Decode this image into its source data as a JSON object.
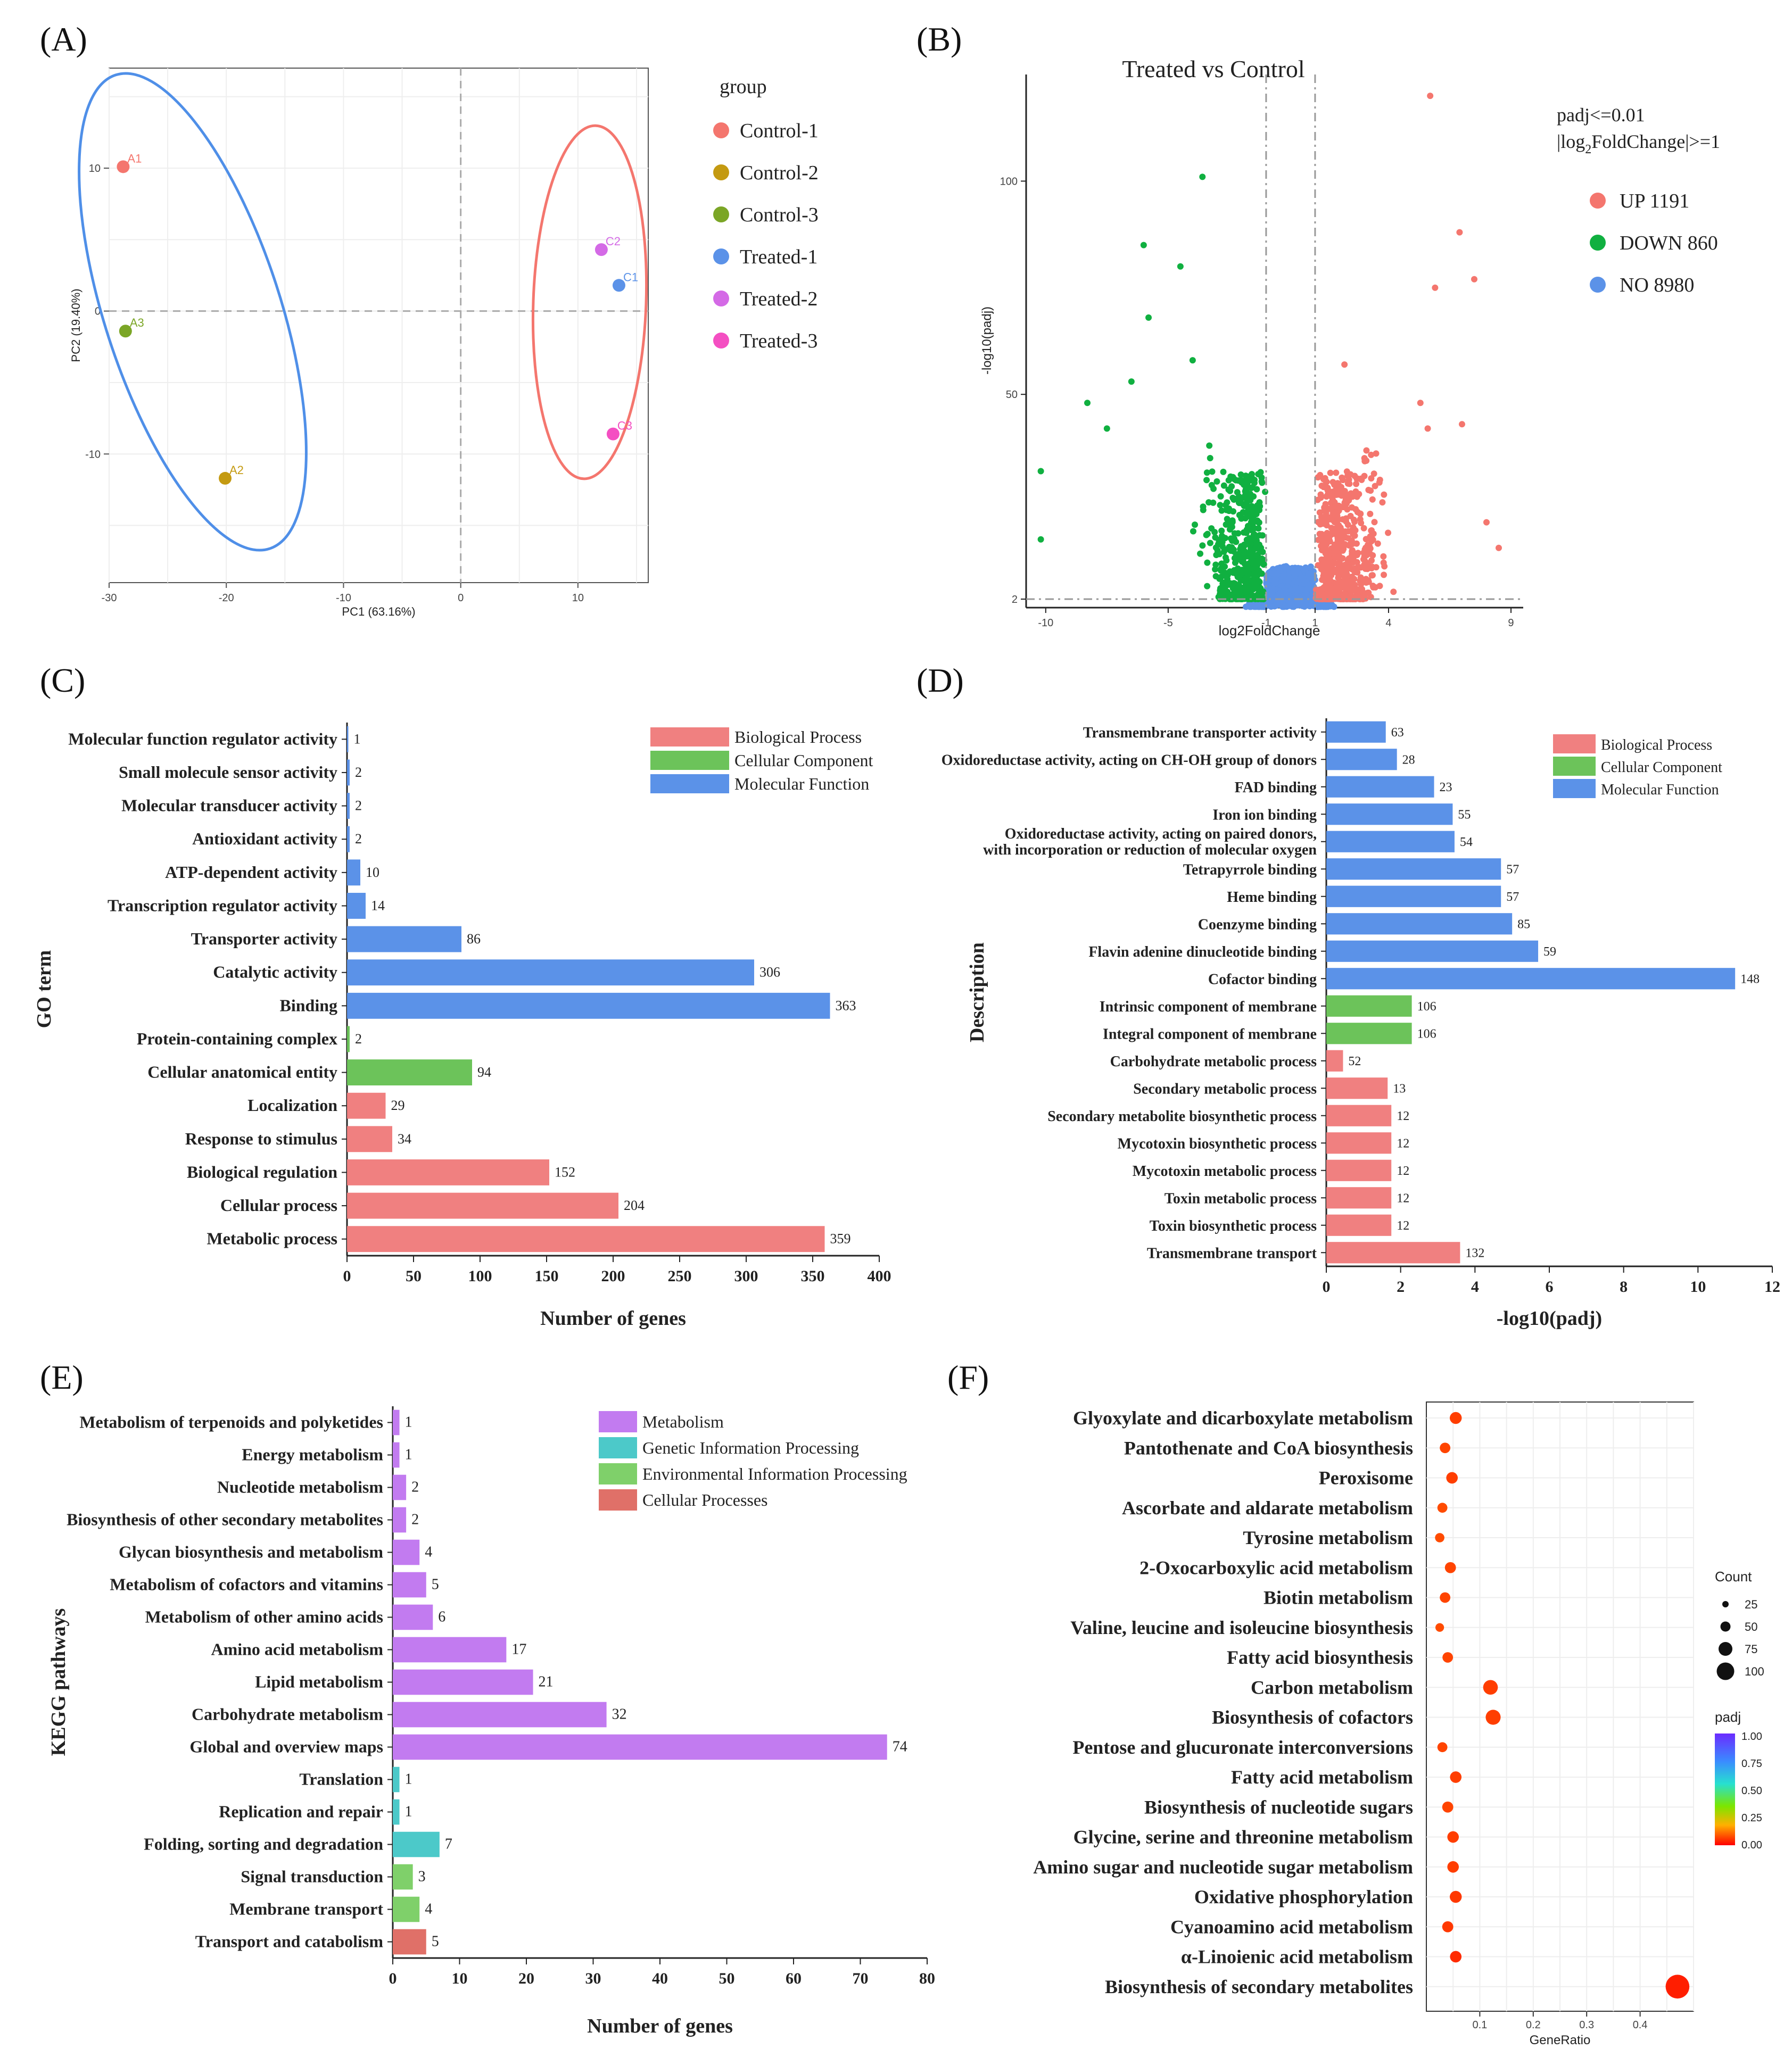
{
  "colors": {
    "bp": "#f08080",
    "cc": "#6cc35a",
    "mf": "#5b92e8",
    "metab": "#c27bf0",
    "gip": "#4cc9c9",
    "eip": "#7fd06a",
    "cp": "#e07068",
    "up": "#f4766e",
    "down": "#10b040",
    "no": "#5b92e8",
    "ellA": "#4f8fe8",
    "ellC": "#f4766e"
  },
  "panels": {
    "A": {
      "label": "(A)",
      "chart_data": {
        "type": "scatter",
        "xlabel": "PC1 (63.16%)",
        "ylabel": "PC2 (19.40%)",
        "xlim": [
          -30,
          16
        ],
        "ylim": [
          -19,
          17
        ],
        "xticks": [
          -30,
          -20,
          -10,
          0,
          10
        ],
        "yticks": [
          -10,
          0,
          10
        ],
        "legend_title": "group",
        "legend": [
          {
            "name": "Control-1",
            "color": "#f4766e"
          },
          {
            "name": "Control-2",
            "color": "#c49a11"
          },
          {
            "name": "Control-3",
            "color": "#7ba626"
          },
          {
            "name": "Treated-1",
            "color": "#5b92e8"
          },
          {
            "name": "Treated-2",
            "color": "#d46ae6"
          },
          {
            "name": "Treated-3",
            "color": "#f44fc2"
          }
        ],
        "points": [
          {
            "label": "A1",
            "x": -28.8,
            "y": 10.1,
            "color": "#f4766e"
          },
          {
            "label": "A3",
            "x": -28.6,
            "y": -1.4,
            "color": "#7ba626"
          },
          {
            "label": "A2",
            "x": -20.1,
            "y": -11.7,
            "color": "#c49a11"
          },
          {
            "label": "C2",
            "x": 12,
            "y": 4.3,
            "color": "#d46ae6"
          },
          {
            "label": "C1",
            "x": 13.5,
            "y": 1.8,
            "color": "#5b92e8"
          },
          {
            "label": "C3",
            "x": 13,
            "y": -8.6,
            "color": "#f44fc2"
          }
        ]
      }
    },
    "B": {
      "label": "(B)",
      "chart_data": {
        "type": "scatter",
        "title": "Treated vs Control",
        "xlabel": "log2FoldChange",
        "ylabel": "-log10(padj)",
        "xlim": [
          -10.8,
          9.5
        ],
        "ylim": [
          0,
          125
        ],
        "xticks": [
          -10,
          -5,
          -1,
          1,
          4,
          9
        ],
        "yticks": [
          2,
          50,
          100
        ],
        "thresholds": {
          "x": [
            -1,
            1
          ],
          "y": 2
        },
        "note1": "padj<=0.01",
        "note2": "|log",
        "note2_sub": "2",
        "note2_end": "FoldChange|>=1",
        "legend": [
          {
            "name": "UP 1191",
            "color": "#f4766e"
          },
          {
            "name": "DOWN 860",
            "color": "#10b040"
          },
          {
            "name": "NO 8980",
            "color": "#5b92e8"
          }
        ],
        "counts": {
          "up": 1191,
          "down": 860,
          "no": 8980
        }
      }
    },
    "C": {
      "label": "(C)",
      "chart_data": {
        "type": "bar",
        "orientation": "horizontal",
        "xlabel": "Number of genes",
        "ylabel": "GO term",
        "xlim": [
          0,
          400
        ],
        "xticks": [
          0,
          50,
          100,
          150,
          200,
          250,
          300,
          350,
          400
        ],
        "legend": [
          {
            "name": "Biological Process",
            "color": "#f08080"
          },
          {
            "name": "Cellular Component",
            "color": "#6cc35a"
          },
          {
            "name": "Molecular Function",
            "color": "#5b92e8"
          }
        ],
        "bars": [
          {
            "label": "Molecular function regulator activity",
            "value": 1,
            "cat": "mf"
          },
          {
            "label": "Small molecule sensor activity",
            "value": 2,
            "cat": "mf"
          },
          {
            "label": "Molecular transducer activity",
            "value": 2,
            "cat": "mf"
          },
          {
            "label": "Antioxidant activity",
            "value": 2,
            "cat": "mf"
          },
          {
            "label": "ATP-dependent activity",
            "value": 10,
            "cat": "mf"
          },
          {
            "label": "Transcription regulator activity",
            "value": 14,
            "cat": "mf"
          },
          {
            "label": "Transporter activity",
            "value": 86,
            "cat": "mf"
          },
          {
            "label": "Catalytic activity",
            "value": 306,
            "cat": "mf"
          },
          {
            "label": "Binding",
            "value": 363,
            "cat": "mf"
          },
          {
            "label": "Protein-containing complex",
            "value": 2,
            "cat": "cc"
          },
          {
            "label": "Cellular anatomical entity",
            "value": 94,
            "cat": "cc"
          },
          {
            "label": "Localization",
            "value": 29,
            "cat": "bp"
          },
          {
            "label": "Response to stimulus",
            "value": 34,
            "cat": "bp"
          },
          {
            "label": "Biological regulation",
            "value": 152,
            "cat": "bp"
          },
          {
            "label": "Cellular process",
            "value": 204,
            "cat": "bp"
          },
          {
            "label": "Metabolic process",
            "value": 359,
            "cat": "bp"
          }
        ]
      }
    },
    "D": {
      "label": "(D)",
      "chart_data": {
        "type": "bar",
        "orientation": "horizontal",
        "xlabel": "-log10(padj)",
        "ylabel": "Description",
        "xlim": [
          0,
          12
        ],
        "xticks": [
          0,
          2,
          4,
          6,
          8,
          10,
          12
        ],
        "legend": [
          {
            "name": "Biological Process",
            "color": "#f08080"
          },
          {
            "name": "Cellular Component",
            "color": "#6cc35a"
          },
          {
            "name": "Molecular Function",
            "color": "#5b92e8"
          }
        ],
        "bars": [
          {
            "label": "Transmembrane transporter activity",
            "value": 1.6,
            "count": 63,
            "cat": "mf"
          },
          {
            "label": "Oxidoreductase activity, acting on CH-OH group of donors",
            "value": 1.9,
            "count": 28,
            "cat": "mf"
          },
          {
            "label": "FAD binding",
            "value": 2.9,
            "count": 23,
            "cat": "mf"
          },
          {
            "label": "Iron ion binding",
            "value": 3.4,
            "count": 55,
            "cat": "mf"
          },
          {
            "label": "Oxidoreductase activity, acting on paired donors,",
            "label2": "with incorporation or reduction of molecular oxygen",
            "value": 3.45,
            "count": 54,
            "cat": "mf"
          },
          {
            "label": "Tetrapyrrole binding",
            "value": 4.7,
            "count": 57,
            "cat": "mf"
          },
          {
            "label": "Heme binding",
            "value": 4.7,
            "count": 57,
            "cat": "mf"
          },
          {
            "label": "Coenzyme binding",
            "value": 5.0,
            "count": 85,
            "cat": "mf"
          },
          {
            "label": "Flavin adenine dinucleotide binding",
            "value": 5.7,
            "count": 59,
            "cat": "mf"
          },
          {
            "label": "Cofactor binding",
            "value": 11.0,
            "count": 148,
            "cat": "mf"
          },
          {
            "label": "Intrinsic component of membrane",
            "value": 2.3,
            "count": 106,
            "cat": "cc"
          },
          {
            "label": "Integral component of membrane",
            "value": 2.3,
            "count": 106,
            "cat": "cc"
          },
          {
            "label": "Carbohydrate metabolic process",
            "value": 0.45,
            "count": 52,
            "cat": "bp"
          },
          {
            "label": "Secondary metabolic process",
            "value": 1.65,
            "count": 13,
            "cat": "bp"
          },
          {
            "label": "Secondary metabolite biosynthetic process",
            "value": 1.75,
            "count": 12,
            "cat": "bp"
          },
          {
            "label": "Mycotoxin biosynthetic process",
            "value": 1.75,
            "count": 12,
            "cat": "bp"
          },
          {
            "label": "Mycotoxin metabolic process",
            "value": 1.75,
            "count": 12,
            "cat": "bp"
          },
          {
            "label": "Toxin metabolic process",
            "value": 1.75,
            "count": 12,
            "cat": "bp"
          },
          {
            "label": "Toxin biosynthetic process",
            "value": 1.75,
            "count": 12,
            "cat": "bp"
          },
          {
            "label": "Transmembrane transport",
            "value": 3.6,
            "count": 132,
            "cat": "bp"
          }
        ]
      }
    },
    "E": {
      "label": "(E)",
      "chart_data": {
        "type": "bar",
        "orientation": "horizontal",
        "xlabel": "Number of genes",
        "ylabel": "KEGG pathways",
        "xlim": [
          0,
          80
        ],
        "xticks": [
          0,
          10,
          20,
          30,
          40,
          50,
          60,
          70,
          80
        ],
        "legend": [
          {
            "name": "Metabolism",
            "color": "#c27bf0"
          },
          {
            "name": "Genetic Information Processing",
            "color": "#4cc9c9"
          },
          {
            "name": "Environmental Information Processing",
            "color": "#7fd06a"
          },
          {
            "name": "Cellular Processes",
            "color": "#e07068"
          }
        ],
        "bars": [
          {
            "label": "Metabolism of terpenoids and polyketides",
            "value": 1,
            "cat": "metab"
          },
          {
            "label": "Energy metabolism",
            "value": 1,
            "cat": "metab"
          },
          {
            "label": "Nucleotide metabolism",
            "value": 2,
            "cat": "metab"
          },
          {
            "label": "Biosynthesis of other secondary metabolites",
            "value": 2,
            "cat": "metab"
          },
          {
            "label": "Glycan biosynthesis and metabolism",
            "value": 4,
            "cat": "metab"
          },
          {
            "label": "Metabolism of cofactors and vitamins",
            "value": 5,
            "cat": "metab"
          },
          {
            "label": "Metabolism of other amino acids",
            "value": 6,
            "cat": "metab"
          },
          {
            "label": "Amino acid metabolism",
            "value": 17,
            "cat": "metab"
          },
          {
            "label": "Lipid metabolism",
            "value": 21,
            "cat": "metab"
          },
          {
            "label": "Carbohydrate metabolism",
            "value": 32,
            "cat": "metab"
          },
          {
            "label": "Global and overview maps",
            "value": 74,
            "cat": "metab"
          },
          {
            "label": "Translation",
            "value": 1,
            "cat": "gip"
          },
          {
            "label": "Replication and repair",
            "value": 1,
            "cat": "gip"
          },
          {
            "label": "Folding, sorting and degradation",
            "value": 7,
            "cat": "gip"
          },
          {
            "label": "Signal transduction",
            "value": 3,
            "cat": "eip"
          },
          {
            "label": "Membrane transport",
            "value": 4,
            "cat": "eip"
          },
          {
            "label": "Transport and catabolism",
            "value": 5,
            "cat": "cp"
          }
        ]
      }
    },
    "F": {
      "label": "(F)",
      "chart_data": {
        "type": "scatter",
        "subtype": "dotplot",
        "xlabel": "GeneRatio",
        "xlim": [
          0,
          0.5
        ],
        "xticks": [
          0.1,
          0.2,
          0.3,
          0.4
        ],
        "size_legend_title": "Count",
        "size_legend": [
          25,
          50,
          75,
          100
        ],
        "color_legend_title": "padj",
        "color_legend_ticks": [
          "1.00",
          "0.75",
          "0.50",
          "0.25",
          "0.00"
        ],
        "points": [
          {
            "label": "Glyoxylate and dicarboxylate metabolism",
            "ratio": 0.055,
            "count": 8,
            "padj": 0.05
          },
          {
            "label": "Pantothenate and CoA biosynthesis",
            "ratio": 0.035,
            "count": 5,
            "padj": 0.06
          },
          {
            "label": "Peroxisome",
            "ratio": 0.048,
            "count": 7,
            "padj": 0.05
          },
          {
            "label": "Ascorbate and aldarate metabolism",
            "ratio": 0.03,
            "count": 4,
            "padj": 0.07
          },
          {
            "label": "Tyrosine metabolism",
            "ratio": 0.025,
            "count": 3,
            "padj": 0.07
          },
          {
            "label": "2-Oxocarboxylic acid metabolism",
            "ratio": 0.045,
            "count": 6,
            "padj": 0.06
          },
          {
            "label": "Biotin metabolism",
            "ratio": 0.035,
            "count": 5,
            "padj": 0.06
          },
          {
            "label": "Valine, leucine and isoleucine biosynthesis",
            "ratio": 0.025,
            "count": 2,
            "padj": 0.07
          },
          {
            "label": "Fatty acid biosynthesis",
            "ratio": 0.04,
            "count": 5,
            "padj": 0.06
          },
          {
            "label": "Carbon metabolism",
            "ratio": 0.12,
            "count": 16,
            "padj": 0.05
          },
          {
            "label": "Biosynthesis of cofactors",
            "ratio": 0.125,
            "count": 17,
            "padj": 0.05
          },
          {
            "label": "Pentose and glucuronate interconversions",
            "ratio": 0.03,
            "count": 4,
            "padj": 0.06
          },
          {
            "label": "Fatty acid metabolism",
            "ratio": 0.055,
            "count": 7,
            "padj": 0.05
          },
          {
            "label": "Biosynthesis of nucleotide sugars",
            "ratio": 0.04,
            "count": 6,
            "padj": 0.06
          },
          {
            "label": "Glycine, serine and threonine metabolism",
            "ratio": 0.05,
            "count": 7,
            "padj": 0.05
          },
          {
            "label": "Amino sugar and nucleotide sugar metabolism",
            "ratio": 0.05,
            "count": 7,
            "padj": 0.05
          },
          {
            "label": "Oxidative phosphorylation",
            "ratio": 0.055,
            "count": 8,
            "padj": 0.04
          },
          {
            "label": "Cyanoamino acid metabolism",
            "ratio": 0.04,
            "count": 6,
            "padj": 0.04
          },
          {
            "label": "α-Linoienic acid metabolism",
            "ratio": 0.055,
            "count": 7,
            "padj": 0.02
          },
          {
            "label": "Biosynthesis of secondary metabolites",
            "ratio": 0.47,
            "count": 62,
            "padj": 0.0
          }
        ]
      }
    }
  }
}
